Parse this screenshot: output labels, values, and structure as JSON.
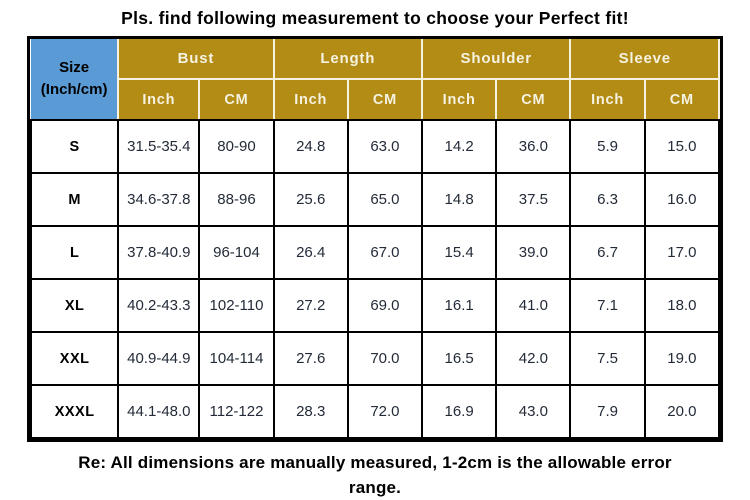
{
  "title": "Pls. find following measurement to choose your Perfect fit!",
  "footer": {
    "line1": "Re: All dimensions are manually measured, 1-2cm is the allowable error",
    "line2": "range."
  },
  "colors": {
    "header_bg": "#B28C15",
    "size_cell_bg": "#5B9BD5",
    "header_divider": "#F6F2E2",
    "grid_border": "#000000",
    "header_text": "#F6F2E2",
    "data_text": "#232B38"
  },
  "chart_data": {
    "type": "table",
    "title": "Pls. find following measurement to choose your Perfect fit!",
    "size_header": [
      "Size",
      "(Inch/cm)"
    ],
    "column_groups": [
      "Bust",
      "Length",
      "Shoulder",
      "Sleeve"
    ],
    "unit_headers": [
      "Inch",
      "CM"
    ],
    "columns": [
      "Size (Inch/cm)",
      "Bust Inch",
      "Bust CM",
      "Length Inch",
      "Length CM",
      "Shoulder Inch",
      "Shoulder CM",
      "Sleeve Inch",
      "Sleeve CM"
    ],
    "rows": [
      [
        "S",
        "31.5-35.4",
        "80-90",
        "24.8",
        "63.0",
        "14.2",
        "36.0",
        "5.9",
        "15.0"
      ],
      [
        "M",
        "34.6-37.8",
        "88-96",
        "25.6",
        "65.0",
        "14.8",
        "37.5",
        "6.3",
        "16.0"
      ],
      [
        "L",
        "37.8-40.9",
        "96-104",
        "26.4",
        "67.0",
        "15.4",
        "39.0",
        "6.7",
        "17.0"
      ],
      [
        "XL",
        "40.2-43.3",
        "102-110",
        "27.2",
        "69.0",
        "16.1",
        "41.0",
        "7.1",
        "18.0"
      ],
      [
        "XXL",
        "40.9-44.9",
        "104-114",
        "27.6",
        "70.0",
        "16.5",
        "42.0",
        "7.5",
        "19.0"
      ],
      [
        "XXXL",
        "44.1-48.0",
        "112-122",
        "28.3",
        "72.0",
        "16.9",
        "43.0",
        "7.9",
        "20.0"
      ]
    ],
    "footnote": "Re: All dimensions are manually measured, 1-2cm is the allowable error range."
  }
}
